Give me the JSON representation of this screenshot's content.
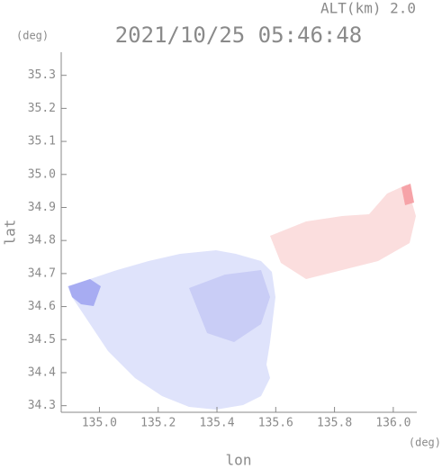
{
  "chart_data": {
    "type": "map",
    "title": "2021/10/25 05:46:48",
    "subtitle": "ALT(km) 2.0",
    "y_unit": "(deg)",
    "x_unit": "(deg)",
    "y_label": "lat",
    "x_label": "lon",
    "xlim": [
      134.87,
      136.08
    ],
    "xticks": [
      {
        "value": 135,
        "label": "135.0"
      },
      135.2,
      135.4,
      135.6,
      135.8,
      {
        "value": 136,
        "label": "136.0"
      }
    ],
    "ylim": [
      34.28,
      35.37
    ],
    "yticks": [
      34.3,
      34.4,
      34.5,
      34.6,
      34.7,
      34.8,
      34.9,
      {
        "value": 35,
        "label": "35.0"
      },
      35.1,
      35.2,
      35.3
    ]
  }
}
